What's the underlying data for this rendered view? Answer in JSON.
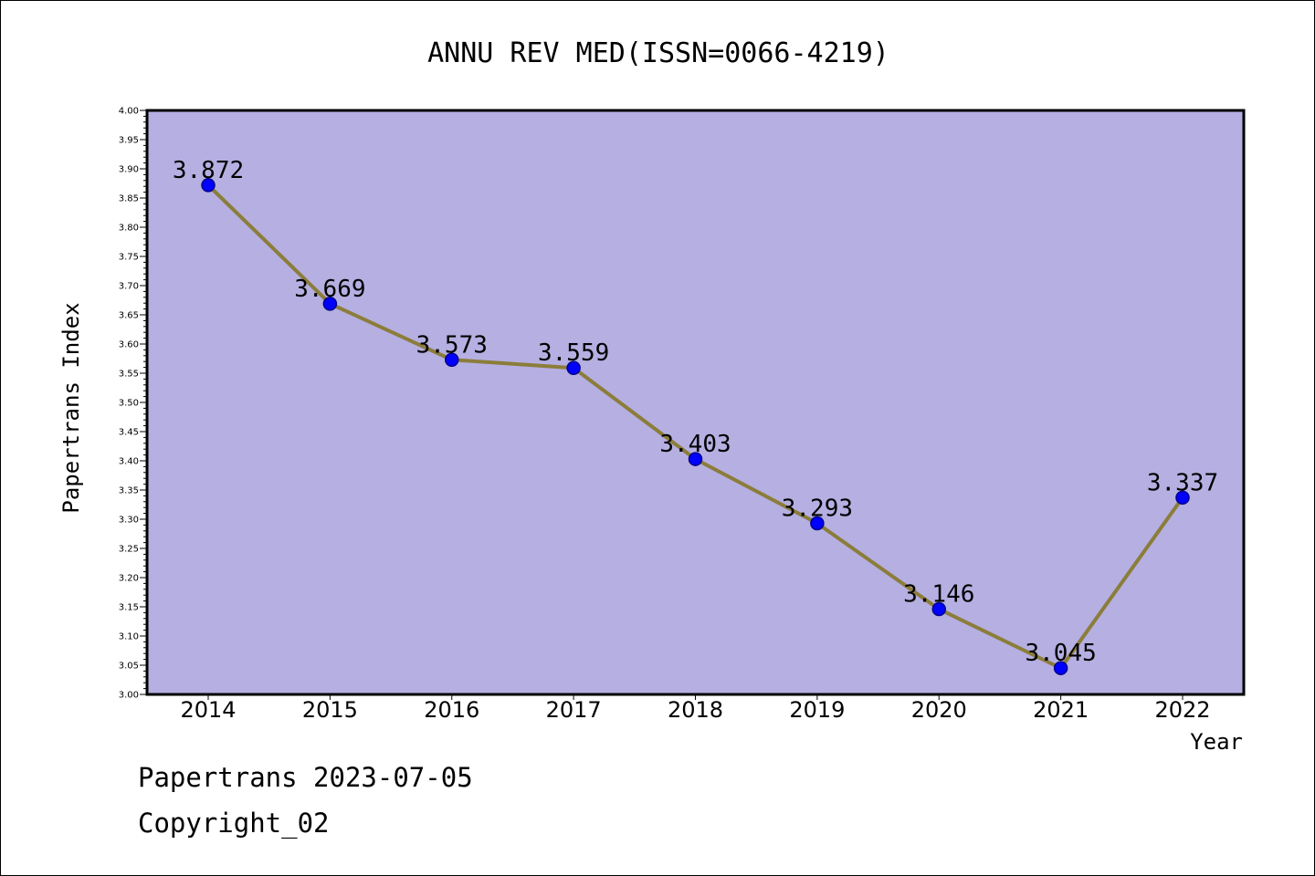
{
  "footer": {
    "line1": "Papertrans 2023-07-05",
    "line2": "Copyright_02"
  },
  "colors": {
    "plot_background": "#b5afe2",
    "line": "#8b7d3a",
    "marker": "#0000ff",
    "marker_edge": "#00008b",
    "axis": "#000000"
  },
  "chart_data": {
    "type": "line",
    "title": "ANNU REV MED(ISSN=0066-4219)",
    "xlabel": "Year",
    "ylabel": "Papertrans Index",
    "categories": [
      "2014",
      "2015",
      "2016",
      "2017",
      "2018",
      "2019",
      "2020",
      "2021",
      "2022"
    ],
    "series": [
      {
        "values": [
          3.872,
          3.669,
          3.573,
          3.559,
          3.403,
          3.293,
          3.146,
          3.045,
          3.337
        ]
      }
    ],
    "data_labels": [
      "3.872",
      "3.669",
      "3.573",
      "3.559",
      "3.403",
      "3.293",
      "3.146",
      "3.045",
      "3.337"
    ],
    "ylim": [
      3.0,
      4.0
    ],
    "y_major_step": 0.05,
    "y_ticks": [
      "3.00",
      "3.05",
      "3.10",
      "3.15",
      "3.20",
      "3.25",
      "3.30",
      "3.35",
      "3.40",
      "3.45",
      "3.50",
      "3.55",
      "3.60",
      "3.65",
      "3.70",
      "3.75",
      "3.80",
      "3.85",
      "3.90",
      "3.95",
      "4.00"
    ],
    "grid": false,
    "legend": "none"
  }
}
